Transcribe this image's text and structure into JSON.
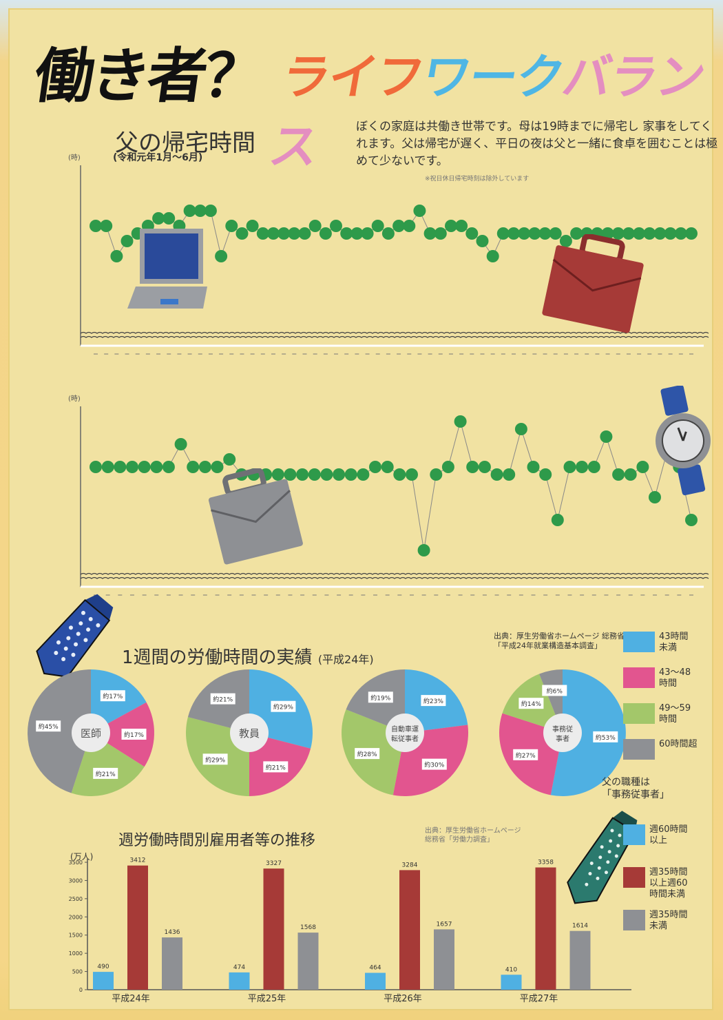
{
  "title": {
    "part1": "働き者？",
    "part2_chars": [
      {
        "ch": "ラ",
        "color": "#f06a3a"
      },
      {
        "ch": "イ",
        "color": "#f06a3a"
      },
      {
        "ch": "フ",
        "color": "#f06a3a"
      },
      {
        "ch": "ワ",
        "color": "#4fb6e4"
      },
      {
        "ch": "ー",
        "color": "#4fb6e4"
      },
      {
        "ch": "ク",
        "color": "#4fb6e4"
      },
      {
        "ch": "バ",
        "color": "#e48ec0"
      },
      {
        "ch": "ラ",
        "color": "#e48ec0"
      },
      {
        "ch": "ン",
        "color": "#e48ec0"
      },
      {
        "ch": "ス",
        "color": "#e48ec0"
      }
    ]
  },
  "description": "ぼくの家庭は共働き世帯です。母は19時までに帰宅し 家事をしてくれます。父は帰宅が遅く、平日の夜は父と一緒に食卓を囲むことは極めて少ないです。",
  "note": "※祝日休日帰宅時刻は除外しています",
  "father_chart": {
    "title": "父の帰宅時間",
    "subtitle": "(令和元年1月～6月)",
    "unit": "(時)"
  },
  "pie_section": {
    "title": "1週間の労働時間の実績",
    "title_note": "(平成24年)",
    "source": "出典：厚生労働省ホームページ 総務省「平成24年就業構造基本調査」"
  },
  "pie_legend": [
    {
      "label": "43時間\n未満",
      "color": "#4fb0e2"
    },
    {
      "label": "43～48\n時間",
      "color": "#e2558f"
    },
    {
      "label": "49～59\n時間",
      "color": "#a3c76a"
    },
    {
      "label": "60時間超",
      "color": "#8e9094"
    }
  ],
  "father_job": "父の職種は\n「事務従事者」",
  "bar_section": {
    "title": "週労働時間別雇用者等の推移",
    "source": "出典：厚生労働省ホームページ\n総務省「労働力調査」",
    "unit": "(万人)"
  },
  "bar_legend": [
    {
      "label": "週60時間\n以上",
      "color": "#4fb0e2"
    },
    {
      "label": "週35時間\n以上週60\n時間未満",
      "color": "#a63a37"
    },
    {
      "label": "週35時間\n未満",
      "color": "#8e9094"
    }
  ],
  "colors": {
    "dot": "#2e9a4a",
    "bar_blue": "#4fb0e2",
    "bar_red": "#a63a37",
    "bar_gray": "#8e9094"
  },
  "chart_data": [
    {
      "type": "line",
      "title": "父の帰宅時間",
      "ylabel": "(時)",
      "note": "y values are estimated relative levels (hand-drawn axis ticks illegible)",
      "values": [
        23,
        23,
        21,
        22,
        22.5,
        23,
        23.5,
        23.5,
        23,
        24,
        24,
        24,
        21,
        23,
        22.5,
        23,
        22.5,
        22.5,
        22.5,
        22.5,
        22.5,
        23,
        22.5,
        23,
        22.5,
        22.5,
        22.5,
        23,
        22.5,
        23,
        23,
        24,
        22.5,
        22.5,
        23,
        23,
        22.5,
        22,
        21,
        22.5,
        22.5,
        22.5,
        22.5,
        22.5,
        22.5,
        22,
        22.5,
        22.5,
        22.5,
        22.5,
        22.5,
        22.5,
        22.5,
        22.5,
        22.5,
        22.5,
        22.5,
        22.5
      ]
    },
    {
      "type": "line",
      "title": "父の帰宅時間 (2)",
      "ylabel": "(時)",
      "values": [
        23,
        23,
        23,
        23,
        23,
        23,
        23,
        24.5,
        23,
        23,
        23,
        23.5,
        22.5,
        22.5,
        22.5,
        22.5,
        22.5,
        22.5,
        22.5,
        22.5,
        22.5,
        22.5,
        22.5,
        23,
        23,
        22.5,
        22.5,
        17.5,
        22.5,
        23,
        26,
        23,
        23,
        22.5,
        22.5,
        25.5,
        23,
        22.5,
        19.5,
        23,
        23,
        23,
        25,
        22.5,
        22.5,
        23,
        21,
        24,
        23,
        19.5
      ]
    },
    {
      "type": "pie",
      "title": "医師",
      "categories": [
        "43時間未満",
        "43～48時間",
        "49～59時間",
        "60時間超"
      ],
      "values": [
        17,
        17,
        21,
        45
      ],
      "labels": [
        "約17%",
        "約17%",
        "約21%",
        "約45%"
      ]
    },
    {
      "type": "pie",
      "title": "教員",
      "categories": [
        "43時間未満",
        "43～48時間",
        "49～59時間",
        "60時間超"
      ],
      "values": [
        29,
        21,
        29,
        21
      ],
      "labels": [
        "約29%",
        "約21%",
        "約29%",
        "約21%"
      ]
    },
    {
      "type": "pie",
      "title": "自動車運転従事者",
      "categories": [
        "43時間未満",
        "43～48時間",
        "49～59時間",
        "60時間超"
      ],
      "values": [
        23,
        30,
        28,
        19
      ],
      "labels": [
        "約23%",
        "約30%",
        "約28%",
        "約19%"
      ]
    },
    {
      "type": "pie",
      "title": "事務従事者",
      "categories": [
        "43時間未満",
        "43～48時間",
        "49～59時間",
        "60時間超"
      ],
      "values": [
        53,
        27,
        14,
        6
      ],
      "labels": [
        "約53%",
        "約27%",
        "約14%",
        "約6%"
      ]
    },
    {
      "type": "bar",
      "title": "週労働時間別雇用者等の推移",
      "ylabel": "(万人)",
      "ylim": [
        0,
        3500
      ],
      "yticks": [
        0,
        500,
        1000,
        1500,
        2000,
        2500,
        3000,
        3500
      ],
      "categories": [
        "平成24年",
        "平成25年",
        "平成26年",
        "平成27年"
      ],
      "series": [
        {
          "name": "週60時間以上",
          "values": [
            490,
            474,
            464,
            410
          ]
        },
        {
          "name": "週35時間以上週60時間未満",
          "values": [
            3412,
            3327,
            3284,
            3358
          ]
        },
        {
          "name": "週35時間未満",
          "values": [
            1436,
            1568,
            1657,
            1614
          ]
        }
      ]
    }
  ]
}
